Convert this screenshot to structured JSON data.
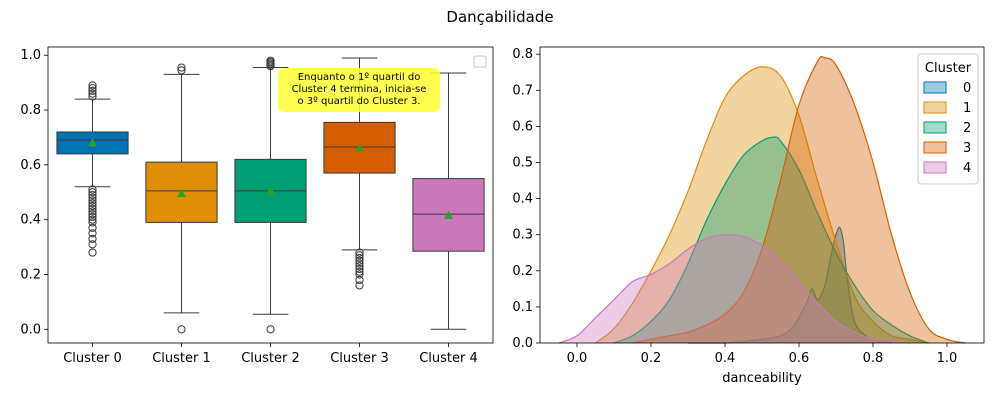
{
  "figure_title": "Dançabilidade",
  "chart_data": [
    {
      "type": "box",
      "title": "",
      "xlabel": "",
      "ylabel": "",
      "ylim": [
        -0.05,
        1.03
      ],
      "yticks": [
        "0.0",
        "0.2",
        "0.4",
        "0.6",
        "0.8",
        "1.0"
      ],
      "categories": [
        "Cluster 0",
        "Cluster 1",
        "Cluster 2",
        "Cluster 3",
        "Cluster 4"
      ],
      "colors": [
        "#0173b2",
        "#de8f05",
        "#029e73",
        "#d55e00",
        "#cc78bc"
      ],
      "mean_marker_color": "#2ca02c",
      "boxes": [
        {
          "q1": 0.64,
          "median": 0.69,
          "q3": 0.72,
          "whisker_low": 0.52,
          "whisker_high": 0.84,
          "mean": 0.68,
          "outliers": [
            0.28,
            0.31,
            0.33,
            0.35,
            0.37,
            0.39,
            0.4,
            0.41,
            0.42,
            0.43,
            0.44,
            0.45,
            0.46,
            0.47,
            0.48,
            0.49,
            0.5,
            0.51,
            0.85,
            0.86,
            0.87,
            0.88,
            0.89
          ]
        },
        {
          "q1": 0.39,
          "median": 0.505,
          "q3": 0.61,
          "whisker_low": 0.06,
          "whisker_high": 0.93,
          "mean": 0.495,
          "outliers": [
            0.0,
            0.945,
            0.955
          ]
        },
        {
          "q1": 0.39,
          "median": 0.505,
          "q3": 0.62,
          "whisker_low": 0.055,
          "whisker_high": 0.955,
          "mean": 0.505,
          "outliers": [
            0.0,
            0.96,
            0.965,
            0.97,
            0.975,
            0.98
          ]
        },
        {
          "q1": 0.57,
          "median": 0.665,
          "q3": 0.755,
          "whisker_low": 0.29,
          "whisker_high": 0.99,
          "mean": 0.66,
          "outliers": [
            0.16,
            0.18,
            0.2,
            0.21,
            0.22,
            0.23,
            0.24,
            0.25,
            0.26,
            0.27,
            0.28
          ]
        },
        {
          "q1": 0.285,
          "median": 0.42,
          "q3": 0.55,
          "whisker_low": 0.0,
          "whisker_high": 0.935,
          "mean": 0.415,
          "outliers": []
        }
      ],
      "annotation": {
        "text_lines": [
          "Enquanto o 1º quartil do",
          "Cluster 4 termina, inicia-se",
          "o 3º quartil do Cluster 3."
        ],
        "background": "#ffff33"
      }
    },
    {
      "type": "area",
      "title": "",
      "xlabel": "danceability",
      "ylabel": "",
      "xlim": [
        -0.1,
        1.1
      ],
      "ylim": [
        0,
        0.82
      ],
      "xticks": [
        "0.0",
        "0.2",
        "0.4",
        "0.6",
        "0.8",
        "1.0"
      ],
      "yticks": [
        "0.0",
        "0.1",
        "0.2",
        "0.3",
        "0.4",
        "0.5",
        "0.6",
        "0.7",
        "0.8"
      ],
      "legend": {
        "title": "Cluster",
        "position": "top-right"
      },
      "series": [
        {
          "name": "0",
          "color": "#0173b2",
          "x": [
            0.3,
            0.4,
            0.5,
            0.55,
            0.58,
            0.6,
            0.62,
            0.635,
            0.65,
            0.67,
            0.69,
            0.7,
            0.71,
            0.72,
            0.73,
            0.75,
            0.78,
            0.8,
            0.85
          ],
          "y": [
            0.0,
            0.0,
            0.01,
            0.02,
            0.04,
            0.07,
            0.11,
            0.15,
            0.12,
            0.16,
            0.26,
            0.3,
            0.32,
            0.28,
            0.18,
            0.06,
            0.02,
            0.01,
            0.0
          ]
        },
        {
          "name": "1",
          "color": "#de8f05",
          "x": [
            0.05,
            0.1,
            0.15,
            0.2,
            0.25,
            0.3,
            0.35,
            0.4,
            0.45,
            0.5,
            0.55,
            0.6,
            0.65,
            0.7,
            0.75,
            0.8,
            0.85,
            0.9,
            0.95
          ],
          "y": [
            0.0,
            0.04,
            0.11,
            0.2,
            0.3,
            0.42,
            0.56,
            0.68,
            0.74,
            0.765,
            0.74,
            0.63,
            0.45,
            0.28,
            0.13,
            0.06,
            0.02,
            0.01,
            0.0
          ]
        },
        {
          "name": "2",
          "color": "#029e73",
          "x": [
            0.1,
            0.15,
            0.2,
            0.25,
            0.3,
            0.35,
            0.4,
            0.45,
            0.5,
            0.53,
            0.55,
            0.6,
            0.65,
            0.7,
            0.75,
            0.8,
            0.85,
            0.9,
            0.95
          ],
          "y": [
            0.0,
            0.02,
            0.06,
            0.12,
            0.22,
            0.34,
            0.44,
            0.52,
            0.56,
            0.57,
            0.56,
            0.48,
            0.36,
            0.25,
            0.16,
            0.09,
            0.05,
            0.02,
            0.0
          ]
        },
        {
          "name": "3",
          "color": "#d55e00",
          "x": [
            0.15,
            0.2,
            0.25,
            0.3,
            0.35,
            0.4,
            0.45,
            0.5,
            0.55,
            0.6,
            0.65,
            0.67,
            0.7,
            0.75,
            0.8,
            0.85,
            0.9,
            0.95,
            1.0,
            1.05
          ],
          "y": [
            0.0,
            0.01,
            0.02,
            0.03,
            0.05,
            0.08,
            0.14,
            0.26,
            0.45,
            0.66,
            0.78,
            0.79,
            0.77,
            0.66,
            0.5,
            0.3,
            0.14,
            0.04,
            0.01,
            0.0
          ]
        },
        {
          "name": "4",
          "color": "#cc78bc",
          "x": [
            -0.05,
            0.0,
            0.05,
            0.1,
            0.15,
            0.2,
            0.25,
            0.3,
            0.35,
            0.4,
            0.45,
            0.5,
            0.55,
            0.6,
            0.65,
            0.7,
            0.75,
            0.8,
            0.85,
            0.9
          ],
          "y": [
            0.0,
            0.02,
            0.07,
            0.12,
            0.17,
            0.19,
            0.22,
            0.26,
            0.29,
            0.3,
            0.295,
            0.27,
            0.23,
            0.17,
            0.11,
            0.06,
            0.03,
            0.01,
            0.005,
            0.0
          ]
        }
      ]
    }
  ]
}
